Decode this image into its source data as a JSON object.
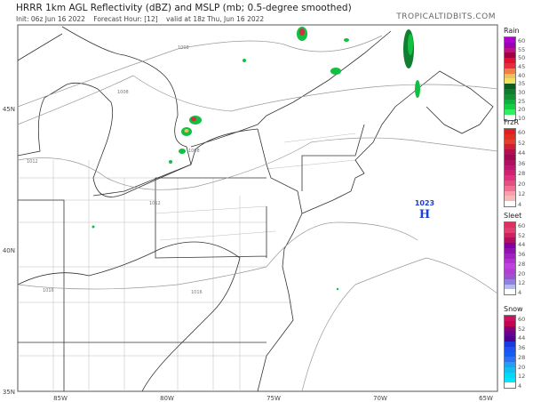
{
  "header": {
    "title": "HRRR 1km AGL Reflectivity (dBZ) and MSLP (mb; 0.5-degree smoothed)",
    "init": "Init: 06z Jun 16 2022",
    "forecast_hour": "Forecast Hour: [12]",
    "valid": "valid at 18z Thu, Jun 16 2022",
    "brand": "TROPICALTIDBITS.COM"
  },
  "map": {
    "lat_labels": [
      "45N",
      "40N",
      "35N"
    ],
    "lon_labels": [
      "85W",
      "80W",
      "75W",
      "70W",
      "65W"
    ],
    "isobar_labels": [
      "1008",
      "1008",
      "1008",
      "1012",
      "1012",
      "1012",
      "1016",
      "1016"
    ],
    "high_pressure": {
      "symbol": "H",
      "value": "1023",
      "color": "#1a3fd6"
    }
  },
  "legends": [
    {
      "name": "Rain",
      "ticks": [
        "60",
        "55",
        "50",
        "45",
        "40",
        "35",
        "30",
        "25",
        "20",
        "10"
      ],
      "colors": [
        "#b000d0",
        "#9a00b8",
        "#c01080",
        "#a00040",
        "#e01030",
        "#e03040",
        "#f08040",
        "#f0c060",
        "#f0e060",
        "#105a20",
        "#107a30",
        "#109030",
        "#10b040",
        "#10d040",
        "#30f060",
        "#ffffff"
      ]
    },
    {
      "name": "FrzR",
      "ticks": [
        "60",
        "52",
        "44",
        "36",
        "28",
        "20",
        "12",
        "4"
      ],
      "colors": [
        "#e02020",
        "#e03020",
        "#e04030",
        "#d02030",
        "#b01050",
        "#a00850",
        "#b01060",
        "#c01870",
        "#d02070",
        "#e03080",
        "#e05080",
        "#f07090",
        "#f8a0a8",
        "#f8b8b8",
        "#ffffff"
      ]
    },
    {
      "name": "Sleet",
      "ticks": [
        "60",
        "52",
        "44",
        "36",
        "28",
        "20",
        "12",
        "4"
      ],
      "colors": [
        "#e03060",
        "#e04070",
        "#d02060",
        "#b01060",
        "#8000a0",
        "#9010b0",
        "#a020c0",
        "#b030d0",
        "#c040e0",
        "#b040d0",
        "#a050d0",
        "#9080e0",
        "#b8b8f0",
        "#ffffff"
      ]
    },
    {
      "name": "Snow",
      "ticks": [
        "60",
        "52",
        "44",
        "36",
        "28",
        "20",
        "12",
        "4"
      ],
      "colors": [
        "#d01060",
        "#c00850",
        "#8a0070",
        "#6a0090",
        "#500090",
        "#1a3ae0",
        "#2050f0",
        "#1060f0",
        "#3070f0",
        "#20a0f0",
        "#10c0f0",
        "#00d8f8",
        "#00e8ff",
        "#ffffff"
      ]
    }
  ]
}
